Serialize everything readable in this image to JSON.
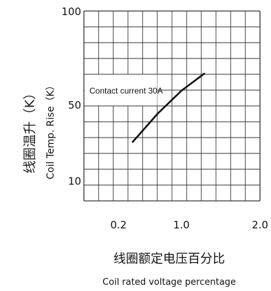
{
  "chart_data": {
    "type": "line",
    "title": "",
    "xlabel": "线圈额定电压百分比",
    "xlabel_en": "Coil rated voltage percentage",
    "ylabel": "线圈温升（K）",
    "ylabel_en": "Coil Temp. Rise（K）",
    "x_tick_labels": [
      "0.2",
      "1.0",
      "2.0"
    ],
    "y_tick_labels": [
      "100",
      "50",
      "10"
    ],
    "x_ticks": [
      0.2,
      1.0,
      2.0
    ],
    "y_ticks": [
      100,
      50,
      10
    ],
    "xlim": [
      -0.24,
      2.0
    ],
    "ylim": [
      0,
      100
    ],
    "grid": true,
    "annotation": "Contact current 30A",
    "series": [
      {
        "x": [
          0.38,
          0.7,
          1.0,
          1.29
        ],
        "y": [
          31,
          46,
          58,
          67
        ]
      }
    ],
    "line_color": "#111111",
    "grid_color": "#333333"
  }
}
